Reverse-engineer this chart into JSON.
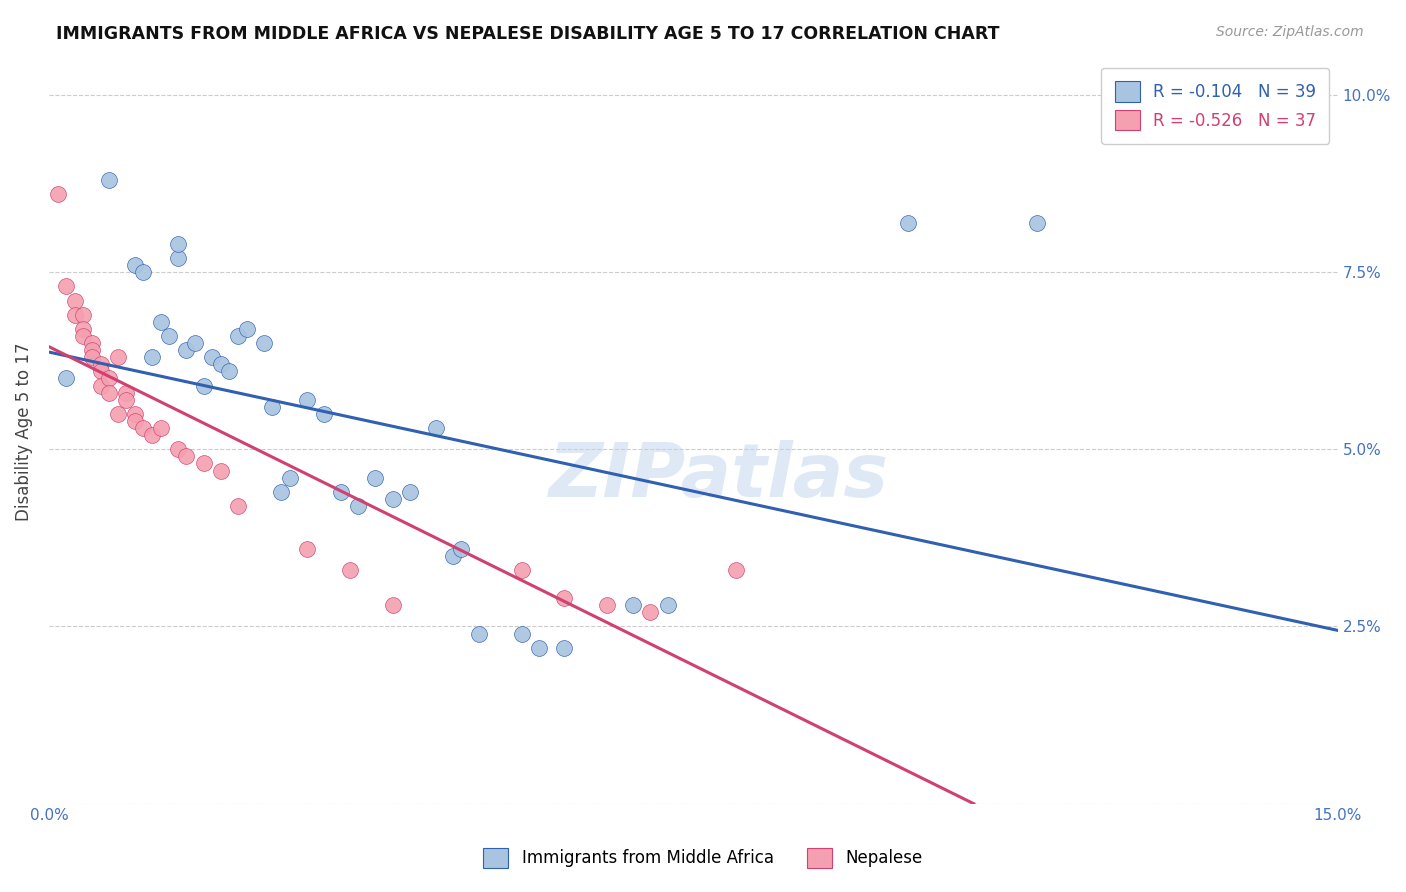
{
  "title": "IMMIGRANTS FROM MIDDLE AFRICA VS NEPALESE DISABILITY AGE 5 TO 17 CORRELATION CHART",
  "source": "Source: ZipAtlas.com",
  "ylabel": "Disability Age 5 to 17",
  "xlim": [
    0.0,
    0.15
  ],
  "ylim": [
    0.0,
    0.105
  ],
  "xticks": [
    0.0,
    0.025,
    0.05,
    0.075,
    0.1,
    0.125,
    0.15
  ],
  "yticks": [
    0.0,
    0.025,
    0.05,
    0.075,
    0.1
  ],
  "ytick_labels_right": [
    "",
    "2.5%",
    "5.0%",
    "7.5%",
    "10.0%"
  ],
  "xtick_labels": [
    "0.0%",
    "",
    "",
    "",
    "",
    "",
    "15.0%"
  ],
  "blue_R": -0.104,
  "blue_N": 39,
  "pink_R": -0.526,
  "pink_N": 37,
  "blue_color": "#a8c4e0",
  "pink_color": "#f4a0b0",
  "blue_line_color": "#3060b0",
  "pink_line_color": "#d04070",
  "legend_blue_label": "Immigrants from Middle Africa",
  "legend_pink_label": "Nepalese",
  "watermark": "ZIPatlas",
  "blue_points": [
    [
      0.002,
      0.06
    ],
    [
      0.007,
      0.088
    ],
    [
      0.01,
      0.076
    ],
    [
      0.011,
      0.075
    ],
    [
      0.012,
      0.063
    ],
    [
      0.013,
      0.068
    ],
    [
      0.014,
      0.066
    ],
    [
      0.015,
      0.077
    ],
    [
      0.015,
      0.079
    ],
    [
      0.016,
      0.064
    ],
    [
      0.017,
      0.065
    ],
    [
      0.018,
      0.059
    ],
    [
      0.019,
      0.063
    ],
    [
      0.02,
      0.062
    ],
    [
      0.021,
      0.061
    ],
    [
      0.022,
      0.066
    ],
    [
      0.023,
      0.067
    ],
    [
      0.025,
      0.065
    ],
    [
      0.026,
      0.056
    ],
    [
      0.027,
      0.044
    ],
    [
      0.028,
      0.046
    ],
    [
      0.03,
      0.057
    ],
    [
      0.032,
      0.055
    ],
    [
      0.034,
      0.044
    ],
    [
      0.036,
      0.042
    ],
    [
      0.038,
      0.046
    ],
    [
      0.04,
      0.043
    ],
    [
      0.042,
      0.044
    ],
    [
      0.045,
      0.053
    ],
    [
      0.047,
      0.035
    ],
    [
      0.048,
      0.036
    ],
    [
      0.05,
      0.024
    ],
    [
      0.055,
      0.024
    ],
    [
      0.057,
      0.022
    ],
    [
      0.06,
      0.022
    ],
    [
      0.068,
      0.028
    ],
    [
      0.072,
      0.028
    ],
    [
      0.1,
      0.082
    ],
    [
      0.115,
      0.082
    ]
  ],
  "pink_points": [
    [
      0.001,
      0.086
    ],
    [
      0.002,
      0.073
    ],
    [
      0.003,
      0.071
    ],
    [
      0.003,
      0.069
    ],
    [
      0.004,
      0.069
    ],
    [
      0.004,
      0.067
    ],
    [
      0.004,
      0.066
    ],
    [
      0.005,
      0.065
    ],
    [
      0.005,
      0.064
    ],
    [
      0.005,
      0.063
    ],
    [
      0.006,
      0.062
    ],
    [
      0.006,
      0.061
    ],
    [
      0.006,
      0.059
    ],
    [
      0.007,
      0.06
    ],
    [
      0.007,
      0.058
    ],
    [
      0.008,
      0.063
    ],
    [
      0.008,
      0.055
    ],
    [
      0.009,
      0.058
    ],
    [
      0.009,
      0.057
    ],
    [
      0.01,
      0.055
    ],
    [
      0.01,
      0.054
    ],
    [
      0.011,
      0.053
    ],
    [
      0.012,
      0.052
    ],
    [
      0.013,
      0.053
    ],
    [
      0.015,
      0.05
    ],
    [
      0.016,
      0.049
    ],
    [
      0.018,
      0.048
    ],
    [
      0.02,
      0.047
    ],
    [
      0.022,
      0.042
    ],
    [
      0.03,
      0.036
    ],
    [
      0.035,
      0.033
    ],
    [
      0.04,
      0.028
    ],
    [
      0.055,
      0.033
    ],
    [
      0.06,
      0.029
    ],
    [
      0.065,
      0.028
    ],
    [
      0.07,
      0.027
    ],
    [
      0.08,
      0.033
    ]
  ]
}
